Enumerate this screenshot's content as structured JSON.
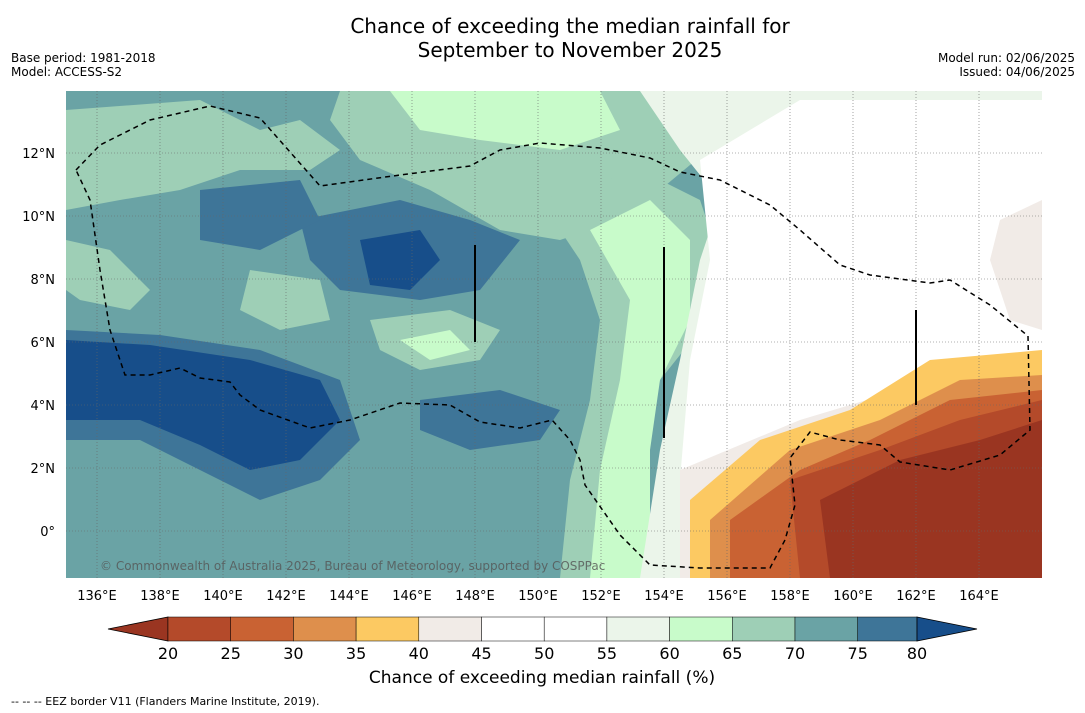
{
  "header": {
    "title_line1": "Chance of exceeding the median rainfall for",
    "title_line2": "September to November 2025",
    "base_period": "Base period: 1981-2018",
    "model": "Model: ACCESS-S2",
    "model_run": "Model run: 02/06/2025",
    "issued": "Issued: 04/06/2025"
  },
  "map": {
    "lon_labels": [
      "136°E",
      "138°E",
      "140°E",
      "142°E",
      "144°E",
      "146°E",
      "148°E",
      "150°E",
      "152°E",
      "154°E",
      "156°E",
      "158°E",
      "160°E",
      "162°E",
      "164°E"
    ],
    "lat_labels": [
      "12°N",
      "10°N",
      "8°N",
      "6°N",
      "4°N",
      "2°N",
      "0°"
    ],
    "watermark": "© Commonwealth of Australia 2025, Bureau of Meteorology, supported by COSPPac",
    "colors": {
      "c20": "#9a3521",
      "c25": "#b44a2a",
      "c30": "#c96233",
      "c35": "#de8f4c",
      "c40": "#fcc962",
      "c45": "#f1ebe7",
      "c50": "#ffffff",
      "c55": "#ffffff",
      "c60": "#ebf5ea",
      "c65": "#c8fbca",
      "c70": "#9ecfb6",
      "c75": "#6aa3a5",
      "c80": "#3e7598",
      "c85": "#174e8a"
    }
  },
  "colorbar": {
    "ticks": [
      "20",
      "25",
      "30",
      "35",
      "40",
      "45",
      "50",
      "55",
      "60",
      "65",
      "70",
      "75",
      "80"
    ],
    "label": "Chance of exceeding median rainfall (%)"
  },
  "footnote": "-- -- -- EEZ border V11 (Flanders Marine Institute, 2019)."
}
